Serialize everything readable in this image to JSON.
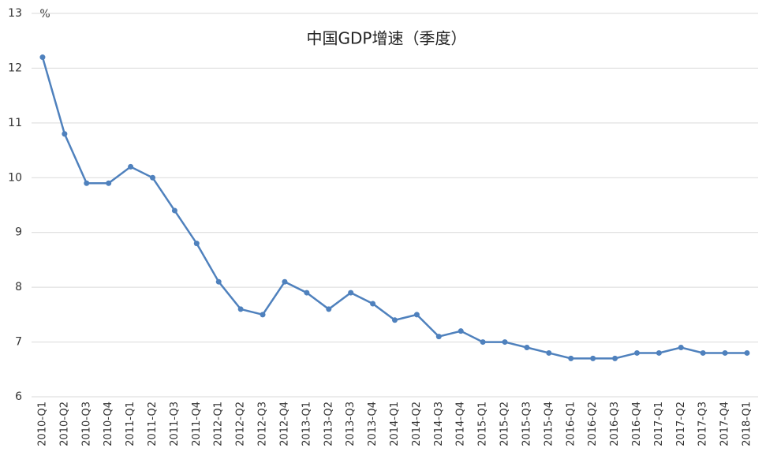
{
  "chart_data": {
    "type": "line",
    "title": "中国GDP增速（季度）",
    "ylabel": "%",
    "categories": [
      "2010-Q1",
      "2010-Q2",
      "2010-Q3",
      "2010-Q4",
      "2011-Q1",
      "2011-Q2",
      "2011-Q3",
      "2011-Q4",
      "2012-Q1",
      "2012-Q2",
      "2012-Q3",
      "2012-Q4",
      "2013-Q1",
      "2013-Q2",
      "2013-Q3",
      "2013-Q4",
      "2014-Q1",
      "2014-Q2",
      "2014-Q3",
      "2014-Q4",
      "2015-Q1",
      "2015-Q2",
      "2015-Q3",
      "2015-Q4",
      "2016-Q1",
      "2016-Q2",
      "2016-Q3",
      "2016-Q4",
      "2017-Q1",
      "2017-Q2",
      "2017-Q3",
      "2017-Q4",
      "2018-Q1"
    ],
    "values": [
      12.2,
      10.8,
      9.9,
      9.9,
      10.2,
      10.0,
      9.4,
      8.8,
      8.1,
      7.6,
      7.5,
      8.1,
      7.9,
      7.6,
      7.9,
      7.7,
      7.4,
      7.5,
      7.1,
      7.2,
      7.0,
      7.0,
      6.9,
      6.8,
      6.7,
      6.7,
      6.7,
      6.8,
      6.8,
      6.9,
      6.8,
      6.8,
      6.8
    ],
    "color": "#4f81bd",
    "ylim": [
      6,
      13
    ],
    "yticks": [
      6,
      7,
      8,
      9,
      10,
      11,
      12,
      13
    ],
    "grid": true
  }
}
